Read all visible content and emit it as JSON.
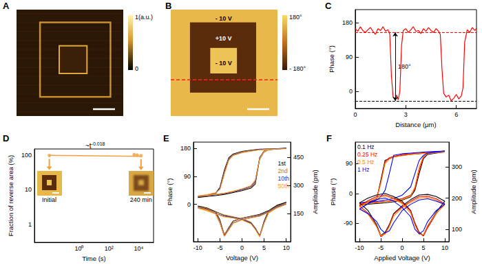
{
  "images": [
    {
      "label": "A",
      "colorbar": {
        "top": "1(a.u.)",
        "bottom": "0"
      }
    },
    {
      "label": "B",
      "regions": [
        "- 10 V",
        "+10 V",
        "- 10 V"
      ],
      "colorbar": {
        "top": "180°",
        "bottom": "- 180°"
      }
    }
  ],
  "chart_data": [
    {
      "label": "C",
      "type": "line",
      "x_label": "Distance (μm)",
      "y_label": "Phase (°)",
      "xlim": [
        0,
        7.2
      ],
      "xticks": [
        0,
        3,
        6
      ],
      "ylim": [
        -45,
        215
      ],
      "yticks": [
        0,
        90,
        180
      ],
      "grid": false,
      "color": "#ff0000",
      "x": [
        0,
        0.15,
        0.3,
        0.45,
        0.6,
        0.75,
        0.9,
        1.05,
        1.2,
        1.35,
        1.5,
        1.65,
        1.8,
        1.95,
        2.05,
        2.15,
        2.25,
        2.35,
        2.45,
        2.55,
        2.65,
        2.75,
        2.85,
        3.0,
        3.15,
        3.3,
        3.45,
        3.6,
        3.75,
        3.9,
        4.05,
        4.2,
        4.35,
        4.5,
        4.65,
        4.8,
        4.95,
        5.05,
        5.15,
        5.25,
        5.4,
        5.55,
        5.7,
        5.85,
        6.0,
        6.15,
        6.3,
        6.4,
        6.5,
        6.65,
        6.8,
        6.95,
        7.1,
        7.2
      ],
      "values": [
        165,
        158,
        170,
        160,
        155,
        162,
        168,
        158,
        150,
        165,
        160,
        170,
        158,
        162,
        150,
        40,
        -15,
        -20,
        -10,
        -22,
        0,
        120,
        160,
        165,
        155,
        162,
        170,
        158,
        160,
        152,
        165,
        158,
        168,
        160,
        155,
        165,
        158,
        150,
        60,
        -5,
        -15,
        -10,
        -25,
        -18,
        -8,
        -20,
        -12,
        10,
        130,
        162,
        155,
        168,
        160,
        165
      ],
      "reference_lines": [
        {
          "value": 155,
          "color": "#ff0000",
          "line_style": "dashed"
        },
        {
          "value": -25,
          "color": "#000000",
          "line_style": "dashed"
        }
      ],
      "annotation": "180°"
    },
    {
      "label": "D",
      "type": "scatter",
      "log": true,
      "x_label": "Time (s)",
      "y_label": "Fraction of reverse area (%)",
      "xlim": [
        0.001,
        100000
      ],
      "xticks": [
        {
          "value": 1,
          "label": "10⁰"
        },
        {
          "value": 100,
          "label": "10²"
        },
        {
          "value": 10000,
          "label": "10⁴"
        }
      ],
      "ylim": [
        0.3,
        150
      ],
      "yticks": [
        1,
        10,
        100
      ],
      "grid": false,
      "color": "#f0a040",
      "x": [
        0.01,
        5000,
        8000,
        14400
      ],
      "values": [
        97,
        103,
        100,
        96
      ],
      "fit": {
        "x": [
          0.01,
          14400
        ],
        "values": [
          98,
          92
        ],
        "label": "~t",
        "exponent": "-0.018"
      },
      "insets": [
        "Initial",
        "240 min"
      ]
    },
    {
      "label": "E",
      "type": "line",
      "x_label": "Voltage (V)",
      "y_label": "Phase (°)",
      "y2_label": "Amplitude (pm)",
      "xlim": [
        -11,
        11
      ],
      "xticks": [
        -10,
        -5,
        0,
        5,
        10
      ],
      "ylim": [
        -120,
        200
      ],
      "yticks": [
        0,
        90,
        180
      ],
      "y2lim": [
        0,
        530
      ],
      "y2ticks": [
        150,
        300,
        450
      ],
      "grid": false,
      "legend": "right",
      "x": [
        -10,
        -8,
        -6,
        -4,
        -2,
        0,
        2,
        3,
        4,
        5,
        6,
        8,
        10,
        10,
        8,
        6,
        4,
        2,
        0,
        -2,
        -3,
        -4,
        -5,
        -6,
        -8,
        -10
      ],
      "series": [
        {
          "name": "1st",
          "color": "#000000",
          "values": [
            22,
            25,
            28,
            32,
            38,
            44,
            52,
            65,
            150,
            170,
            176,
            178,
            180,
            180,
            179,
            178,
            177,
            174,
            170,
            162,
            150,
            110,
            55,
            35,
            28,
            22
          ]
        },
        {
          "name": "2nd",
          "color": "#b8732a",
          "values": [
            24,
            27,
            30,
            34,
            40,
            46,
            55,
            70,
            145,
            168,
            175,
            178,
            179,
            179,
            178,
            177,
            176,
            173,
            169,
            160,
            148,
            105,
            52,
            34,
            29,
            24
          ]
        },
        {
          "name": "10th",
          "color": "#3030d0",
          "values": [
            26,
            28,
            31,
            35,
            41,
            48,
            58,
            75,
            150,
            172,
            177,
            179,
            180,
            180,
            179,
            178,
            176,
            172,
            167,
            158,
            145,
            100,
            50,
            36,
            30,
            26
          ]
        },
        {
          "name": "50th",
          "color": "#ff9a1a",
          "values": [
            27,
            29,
            32,
            36,
            42,
            50,
            60,
            78,
            148,
            170,
            176,
            178,
            179,
            179,
            178,
            177,
            175,
            171,
            166,
            157,
            142,
            98,
            48,
            37,
            31,
            27
          ]
        },
        {
          "name": "1st",
          "color": "#000000",
          "axis": "y2",
          "values": [
            190,
            175,
            160,
            140,
            130,
            120,
            100,
            70,
            30,
            110,
            165,
            195,
            210,
            210,
            190,
            165,
            145,
            135,
            125,
            110,
            75,
            35,
            115,
            160,
            180,
            190
          ]
        },
        {
          "name": "2nd",
          "color": "#b8732a",
          "axis": "y2",
          "values": [
            185,
            172,
            158,
            142,
            132,
            122,
            104,
            74,
            34,
            105,
            160,
            190,
            205,
            205,
            188,
            162,
            142,
            133,
            124,
            108,
            72,
            38,
            110,
            155,
            178,
            185
          ]
        },
        {
          "name": "10th",
          "color": "#3030d0",
          "axis": "y2",
          "values": [
            180,
            168,
            150,
            135,
            128,
            118,
            98,
            68,
            28,
            100,
            155,
            185,
            200,
            200,
            182,
            158,
            138,
            128,
            118,
            100,
            65,
            30,
            100,
            150,
            172,
            180
          ]
        },
        {
          "name": "50th",
          "color": "#ff9a1a",
          "axis": "y2",
          "values": [
            178,
            165,
            148,
            132,
            125,
            115,
            95,
            65,
            26,
            98,
            152,
            182,
            198,
            198,
            180,
            155,
            135,
            126,
            116,
            98,
            62,
            28,
            98,
            148,
            170,
            178
          ]
        }
      ]
    },
    {
      "label": "F",
      "type": "line",
      "x_label": "Applied Voltage (V)",
      "y_label": "Phase (°)",
      "y2_label": "Amplitude (pm)",
      "xlim": [
        -11,
        11
      ],
      "xticks": [
        -10,
        -5,
        0,
        5,
        10
      ],
      "ylim": [
        -145,
        155
      ],
      "yticks": [
        -90,
        0,
        90
      ],
      "y2lim": [
        60,
        380
      ],
      "y2ticks": [
        100,
        200,
        300
      ],
      "grid": false,
      "legend": "upper left",
      "x": [
        -10,
        -8,
        -6,
        -4,
        -2,
        0,
        2,
        3,
        4,
        5,
        6,
        8,
        10,
        10,
        8,
        6,
        4,
        2,
        0,
        -2,
        -3,
        -4,
        -5,
        -6,
        -8,
        -10
      ],
      "series": [
        {
          "name": "0.1 Hz",
          "color": "#000000",
          "values": [
            -35,
            -32,
            -30,
            -28,
            -25,
            -20,
            -10,
            10,
            60,
            105,
            118,
            122,
            125,
            125,
            124,
            123,
            120,
            118,
            115,
            110,
            105,
            100,
            40,
            -20,
            -30,
            -35
          ]
        },
        {
          "name": "0.25 Hz",
          "color": "#ff0000",
          "values": [
            -30,
            -28,
            -26,
            -24,
            -20,
            -15,
            -5,
            15,
            70,
            110,
            120,
            124,
            126,
            126,
            125,
            124,
            122,
            120,
            117,
            112,
            108,
            95,
            35,
            -15,
            -25,
            -30
          ]
        },
        {
          "name": "0.5 Hz",
          "color": "#ff8c00",
          "values": [
            -32,
            -30,
            -28,
            -25,
            -22,
            -18,
            -8,
            20,
            80,
            112,
            120,
            123,
            125,
            125,
            124,
            122,
            120,
            118,
            114,
            110,
            104,
            90,
            30,
            -18,
            -28,
            -32
          ]
        },
        {
          "name": "1 Hz",
          "color": "#0000ff",
          "values": [
            -28,
            -26,
            -24,
            -20,
            -15,
            -5,
            20,
            60,
            100,
            115,
            122,
            125,
            128,
            128,
            127,
            126,
            124,
            122,
            120,
            115,
            60,
            10,
            -10,
            -20,
            -25,
            -28
          ]
        },
        {
          "name": "0.1 Hz",
          "color": "#000000",
          "axis": "y2",
          "values": [
            185,
            200,
            210,
            215,
            205,
            190,
            160,
            120,
            90,
            80,
            110,
            155,
            190,
            190,
            205,
            212,
            210,
            195,
            175,
            150,
            115,
            90,
            80,
            115,
            160,
            185
          ]
        },
        {
          "name": "0.25 Hz",
          "color": "#ff0000",
          "axis": "y2",
          "values": [
            175,
            192,
            205,
            210,
            200,
            186,
            158,
            118,
            88,
            78,
            105,
            150,
            182,
            182,
            198,
            206,
            205,
            190,
            172,
            148,
            112,
            86,
            76,
            110,
            152,
            175
          ]
        },
        {
          "name": "0.5 Hz",
          "color": "#ff8c00",
          "axis": "y2",
          "values": [
            170,
            188,
            200,
            206,
            198,
            182,
            152,
            112,
            84,
            82,
            112,
            152,
            178,
            178,
            194,
            202,
            200,
            186,
            168,
            142,
            108,
            84,
            80,
            108,
            148,
            170
          ]
        },
        {
          "name": "1 Hz",
          "color": "#0000ff",
          "axis": "y2",
          "values": [
            165,
            182,
            195,
            200,
            190,
            170,
            140,
            100,
            85,
            95,
            125,
            160,
            180,
            180,
            190,
            198,
            194,
            180,
            160,
            120,
            95,
            88,
            100,
            125,
            150,
            165
          ]
        }
      ]
    }
  ]
}
